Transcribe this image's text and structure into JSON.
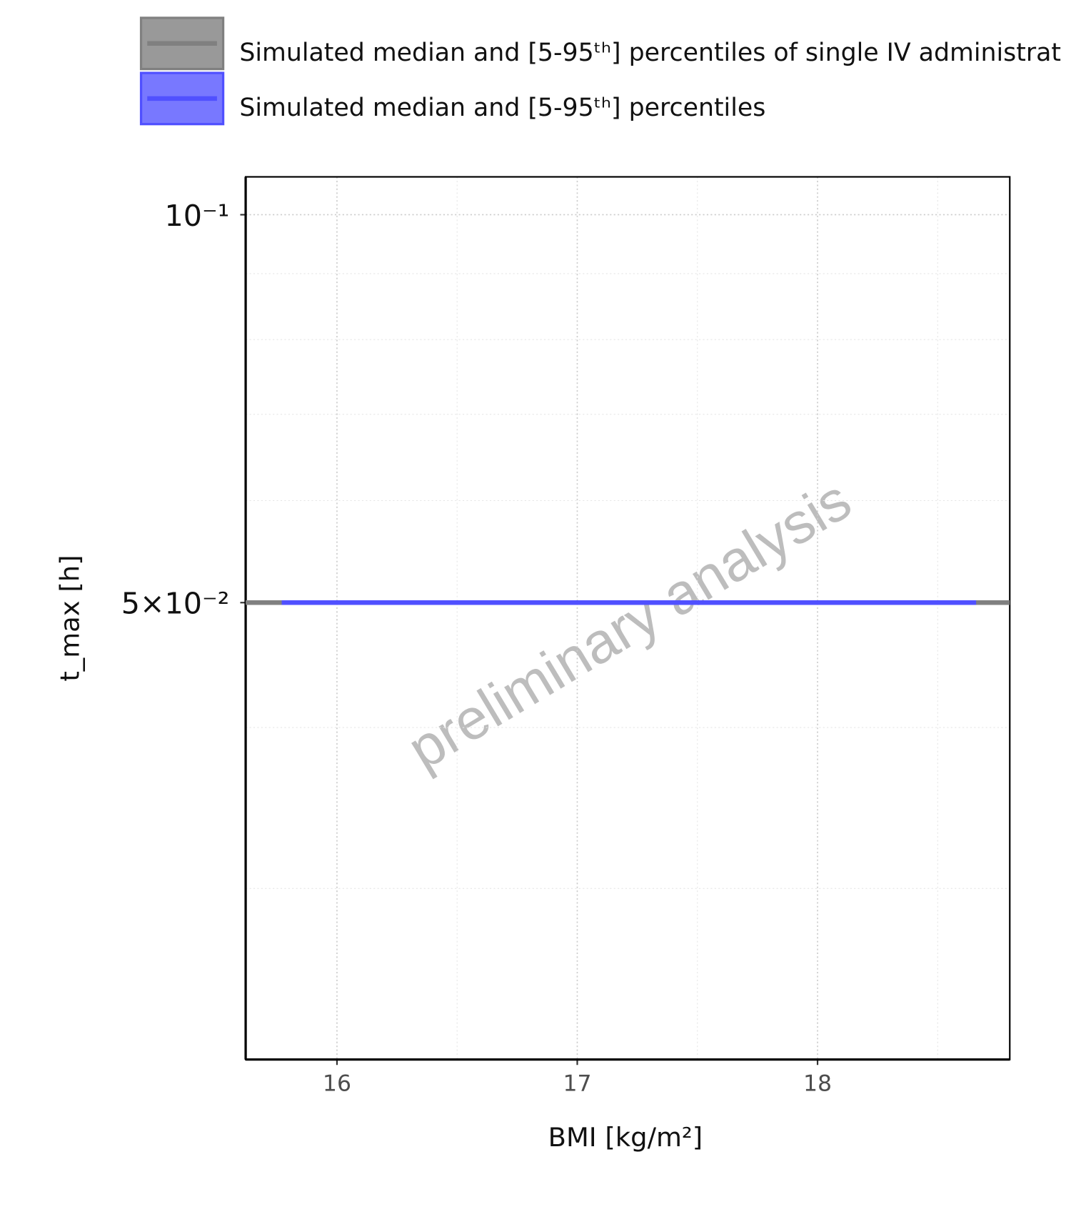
{
  "chart_data": {
    "type": "line",
    "xlabel": "BMI [kg/m²]",
    "ylabel": "t_max [h]",
    "annotation": "preliminary analysis",
    "log_y": true,
    "grid": true,
    "legend_position": "top",
    "xlim": [
      15.62,
      18.8
    ],
    "xticks": [
      16,
      17,
      18
    ],
    "x_minor_ticks": [
      16.5,
      17.5,
      18.5
    ],
    "ylim": [
      0.0221,
      0.107
    ],
    "yticks": [
      {
        "value": 0.1,
        "label": "10⁻¹"
      },
      {
        "value": 0.05,
        "label": "5×10⁻²"
      }
    ],
    "y_minor_ticks": [
      0.09,
      0.08,
      0.07,
      0.06,
      0.04,
      0.03
    ],
    "series": [
      {
        "name": "Simulated median and [5-95ᵗʰ] percentiles of single IV administrat",
        "color": "#808080",
        "fill": "#999999",
        "x": [
          15.62,
          18.8
        ],
        "values": [
          0.05,
          0.05
        ]
      },
      {
        "name": "Simulated median and [5-95ᵗʰ] percentiles",
        "color": "#5050ff",
        "fill": "#7878ff",
        "x": [
          15.77,
          18.66
        ],
        "values": [
          0.05,
          0.05
        ]
      }
    ]
  }
}
